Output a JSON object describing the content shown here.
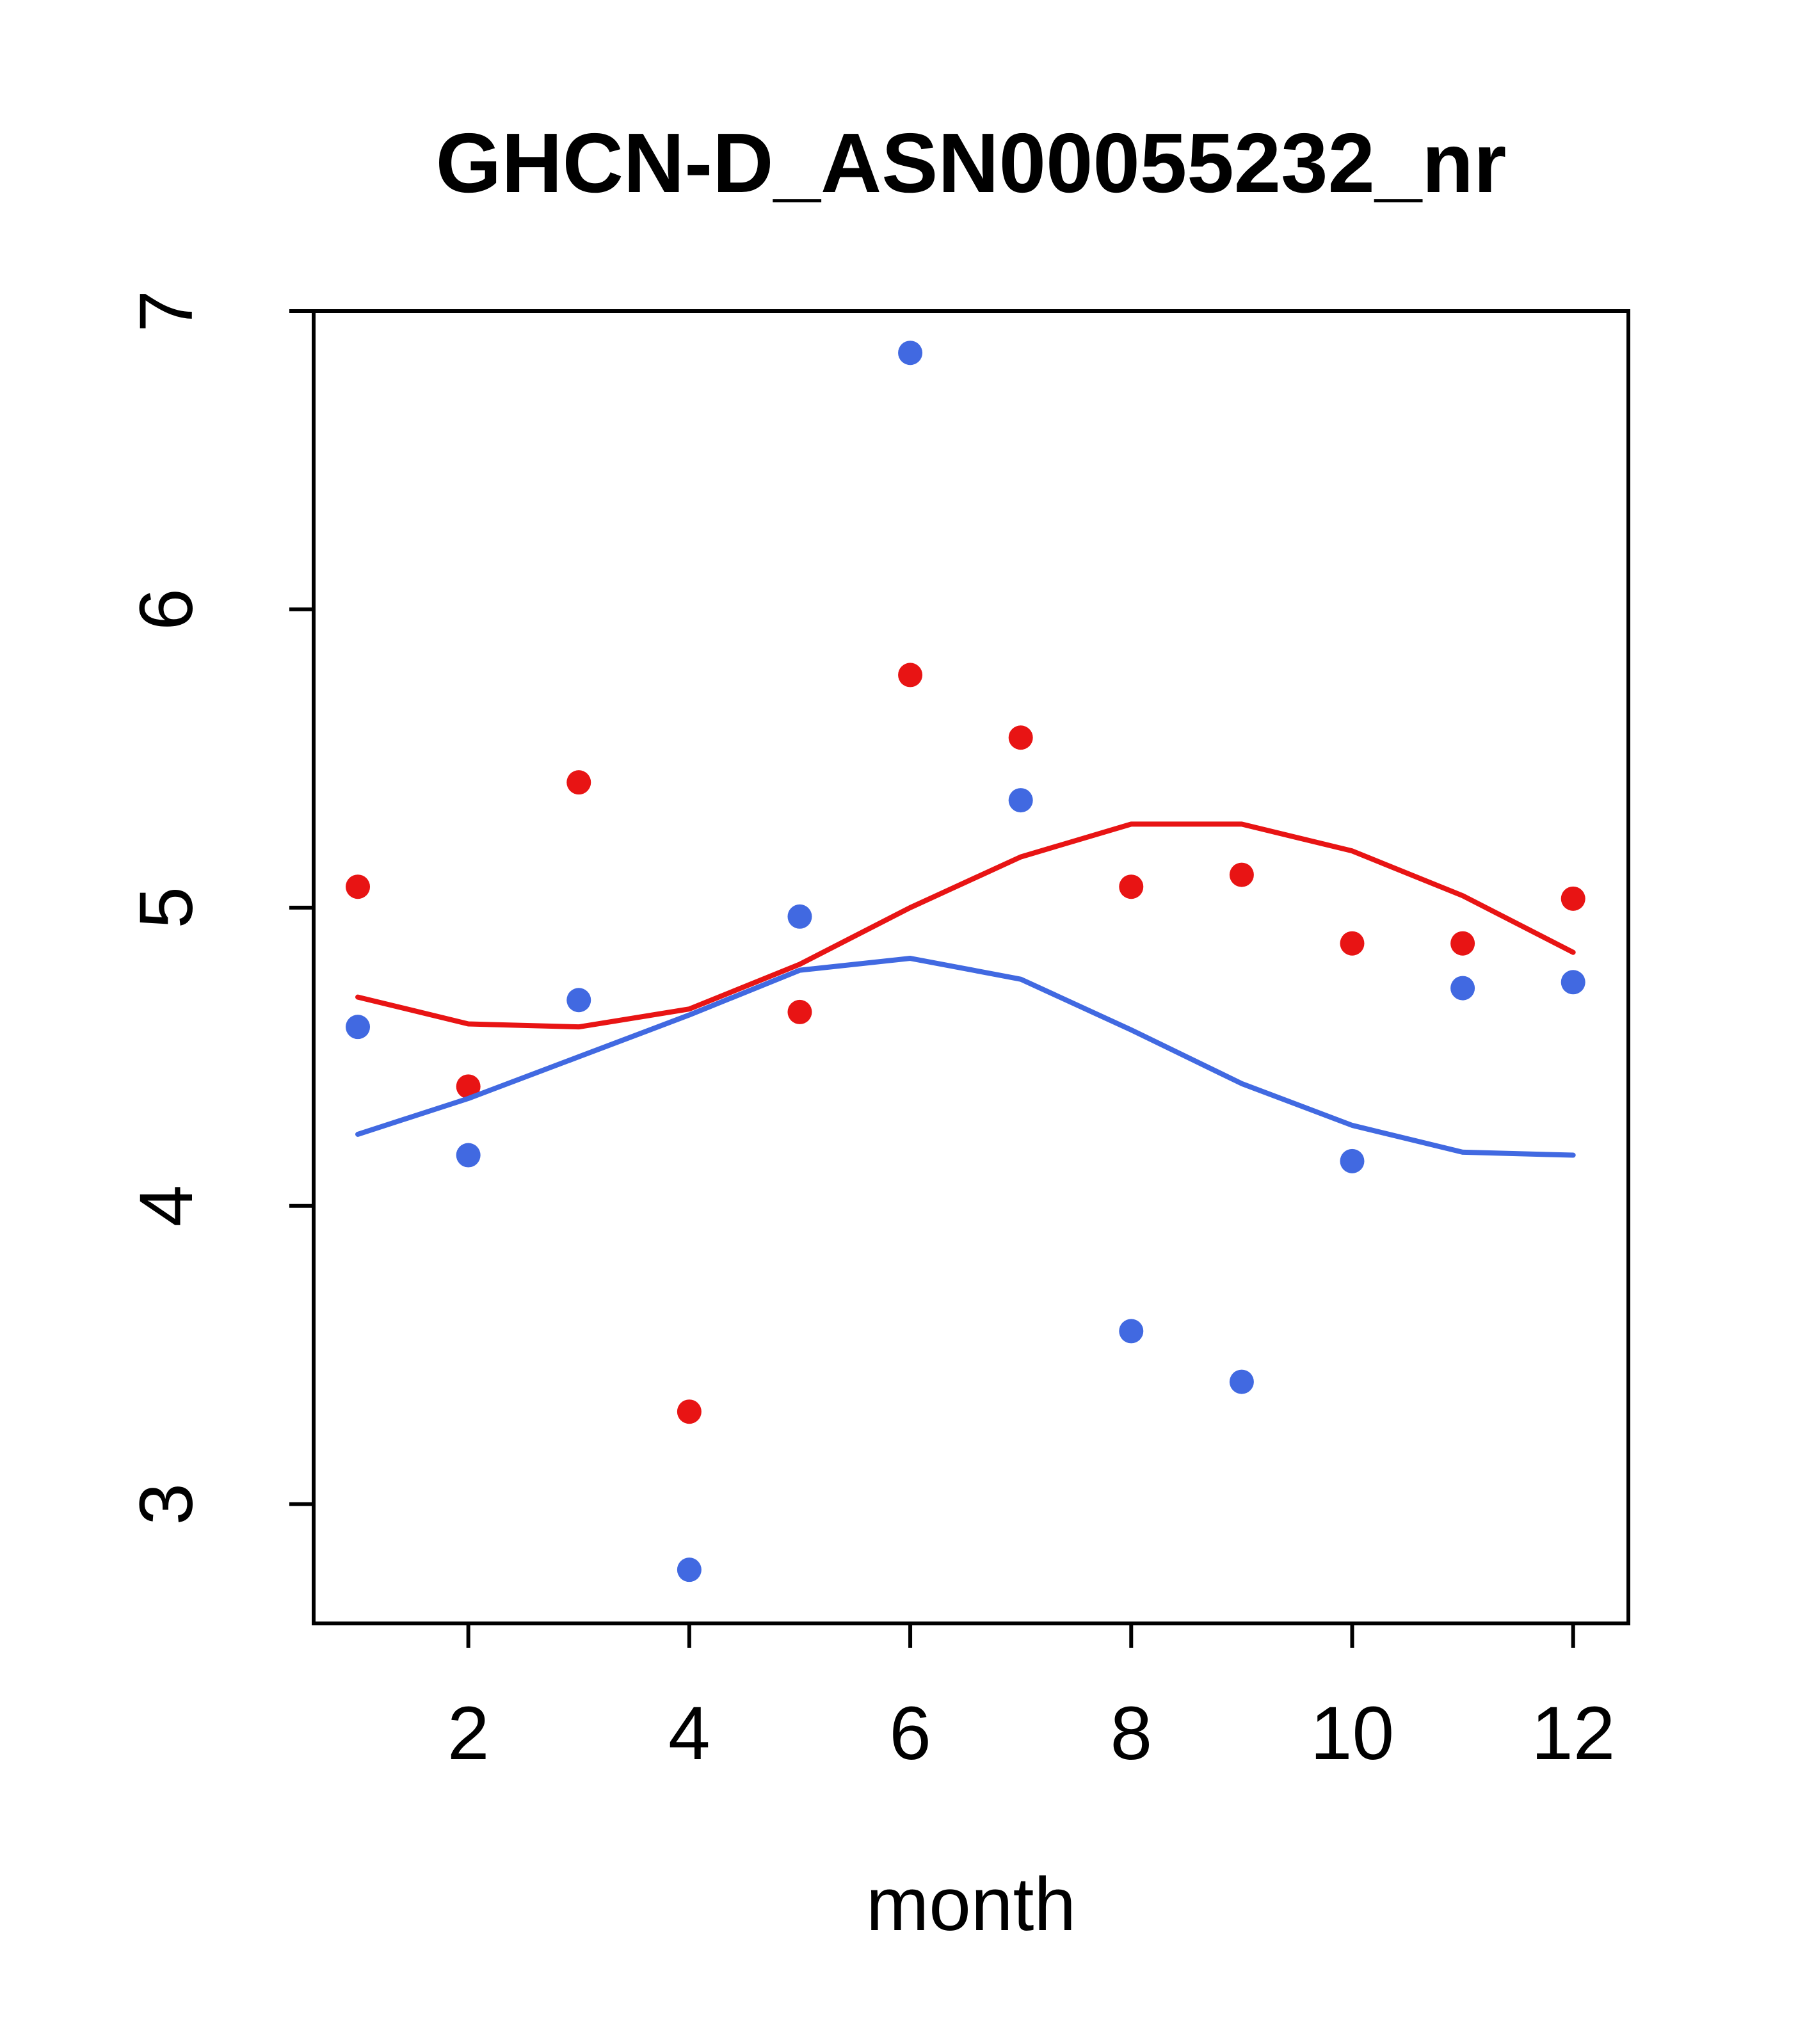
{
  "chart_data": {
    "type": "scatter",
    "title": "GHCN-D_ASN00055232_nr",
    "xlabel": "month",
    "ylabel": "",
    "xlim": [
      0.6,
      12.5
    ],
    "ylim": [
      2.6,
      7.0
    ],
    "x_ticks": [
      2,
      4,
      6,
      8,
      10,
      12
    ],
    "y_ticks": [
      3,
      4,
      5,
      6,
      7
    ],
    "x": [
      1,
      2,
      3,
      4,
      5,
      6,
      7,
      8,
      9,
      10,
      11,
      12
    ],
    "colors": {
      "red": "#e81414",
      "blue": "#4169e1"
    },
    "series": [
      {
        "name": "red-points",
        "kind": "points",
        "color": "#e81414",
        "values": [
          5.07,
          4.4,
          5.42,
          3.31,
          4.65,
          5.78,
          5.57,
          5.07,
          5.11,
          4.88,
          4.88,
          5.03
        ]
      },
      {
        "name": "blue-points",
        "kind": "points",
        "color": "#4169e1",
        "values": [
          4.6,
          4.17,
          4.69,
          2.78,
          4.97,
          6.86,
          5.36,
          3.58,
          3.41,
          4.15,
          4.73,
          4.75
        ]
      },
      {
        "name": "red-trend-line",
        "kind": "line",
        "color": "#e81414",
        "values": [
          4.7,
          4.61,
          4.6,
          4.66,
          4.81,
          5.0,
          5.17,
          5.28,
          5.28,
          5.19,
          5.04,
          4.85
        ]
      },
      {
        "name": "blue-trend-line",
        "kind": "line",
        "color": "#4169e1",
        "values": [
          4.24,
          4.36,
          4.5,
          4.64,
          4.79,
          4.83,
          4.76,
          4.59,
          4.41,
          4.27,
          4.18,
          4.17
        ]
      }
    ],
    "legend": null,
    "grid": false
  }
}
